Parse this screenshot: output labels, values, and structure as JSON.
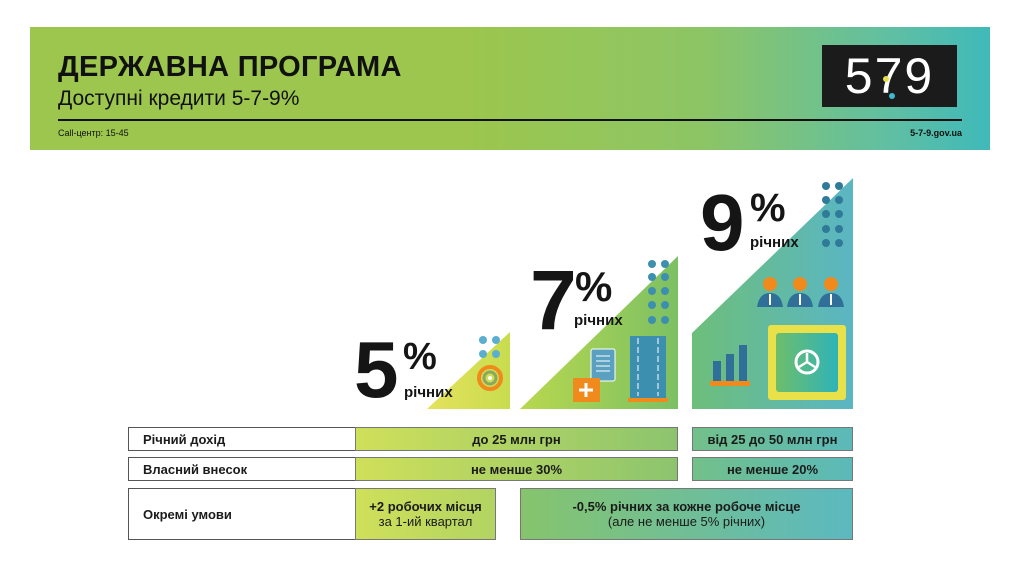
{
  "header": {
    "title": "ДЕРЖАВНА ПРОГРАМА",
    "subtitle": "Доступні кредити 5-7-9%",
    "call_center": "Call-центр: 15-45",
    "website": "5-7-9.gov.ua",
    "logo": {
      "five": "5",
      "seven": "7",
      "nine": "9"
    }
  },
  "rates": [
    {
      "value": "5",
      "percent": "%",
      "label": "річних"
    },
    {
      "value": "7",
      "percent": "%",
      "label": "річних"
    },
    {
      "value": "9",
      "percent": "%",
      "label": "річних"
    }
  ],
  "table": {
    "rows": [
      {
        "label": "Річний дохід",
        "col1": "до 25 млн грн",
        "col2": "від 25 до 50 млн грн"
      },
      {
        "label": "Власний внесок",
        "col1": "не менше 30%",
        "col2": "не менше 20%"
      },
      {
        "label": "Окремі умови",
        "col1_line1": "+2 робочих місця",
        "col1_line2": "за 1-ий квартал",
        "col2_line1": "-0,5% річних за кожне робоче місце",
        "col2_line2": "(але не менше 5% річних)"
      }
    ]
  },
  "colors": {
    "green": "#9cc64d",
    "teal": "#3fb9b9",
    "orange": "#f08a1c",
    "blue": "#3d7fa0",
    "yellow": "#e8e14a"
  }
}
